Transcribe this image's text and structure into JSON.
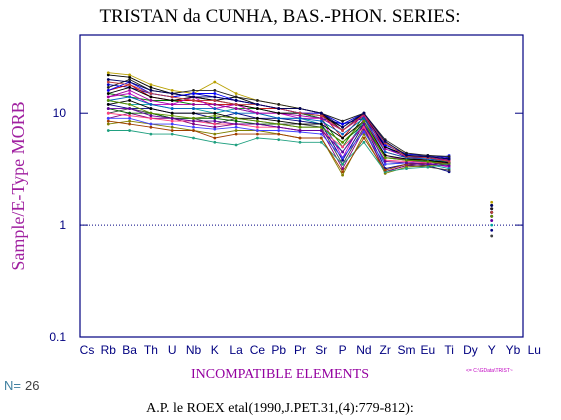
{
  "chart_data": {
    "type": "line",
    "title": "TRISTAN da CUNHA, BAS.-PHON. SERIES:",
    "x_label": "INCOMPATIBLE ELEMENTS",
    "y_label": "Sample/E-Type MORB",
    "count_label": "N=",
    "count": 26,
    "source_note": "<= C:\\GData\\TRIST~",
    "citation": "A.P. le ROEX etal(1990,J.PET.31,(4):779-812):",
    "categories": [
      "Cs",
      "Rb",
      "Ba",
      "Th",
      "U",
      "Nb",
      "K",
      "La",
      "Ce",
      "Pb",
      "Pr",
      "Sr",
      "P",
      "Nd",
      "Zr",
      "Sm",
      "Eu",
      "Ti",
      "Dy",
      "Y",
      "Yb",
      "Lu"
    ],
    "log_scale": true,
    "ylim": [
      0.1,
      50
    ],
    "yticks": [
      0.1,
      1,
      10
    ],
    "reference_line": 1,
    "series": [
      {
        "color": "#000000",
        "values": [
          null,
          22,
          21,
          17,
          15,
          14,
          13,
          14,
          12,
          11,
          11,
          10,
          7,
          10,
          5,
          4.2,
          4,
          3.8,
          null,
          1.5,
          null,
          null
        ]
      },
      {
        "color": "#b8a000",
        "values": [
          null,
          23,
          22,
          18,
          16,
          15,
          19,
          15,
          13,
          12,
          11,
          10,
          8,
          10,
          5.5,
          4.3,
          4.2,
          4,
          null,
          1.6,
          null,
          null
        ]
      },
      {
        "color": "#0000c0",
        "values": [
          null,
          18,
          17,
          15,
          14,
          15,
          14,
          13,
          12,
          11,
          10,
          9,
          8,
          9,
          5,
          4,
          4,
          3.6,
          null,
          1.4,
          null,
          null
        ]
      },
      {
        "color": "#c00000",
        "values": [
          null,
          16,
          18,
          14,
          13,
          13,
          12,
          12,
          11,
          11,
          10,
          10,
          6,
          10,
          4.5,
          4,
          3.8,
          3.5,
          null,
          1.3,
          null,
          null
        ]
      },
      {
        "color": "#008000",
        "values": [
          null,
          15,
          14,
          13,
          13,
          12,
          12,
          11,
          11,
          10,
          10,
          9,
          5,
          9.5,
          4,
          3.9,
          3.7,
          3.4,
          null,
          1.2,
          null,
          null
        ]
      },
      {
        "color": "#c000c0",
        "values": [
          null,
          14,
          15,
          12,
          12,
          14,
          11,
          12,
          10,
          10,
          9,
          9,
          4,
          9,
          4.2,
          3.8,
          3.6,
          3.3,
          null,
          1.1,
          null,
          null
        ]
      },
      {
        "color": "#00a0a0",
        "values": [
          null,
          13,
          12,
          12,
          11,
          11,
          10,
          11,
          10,
          9,
          9,
          8,
          4.5,
          8.5,
          3.5,
          3.6,
          3.5,
          3.2,
          null,
          1,
          null,
          null
        ]
      },
      {
        "color": "#000080",
        "values": [
          null,
          12,
          11,
          11,
          10,
          10,
          9,
          10,
          9,
          9,
          8.5,
          8,
          3.8,
          8,
          3.2,
          3.5,
          3.4,
          3,
          null,
          0.9,
          null,
          null
        ]
      },
      {
        "color": "#404040",
        "values": [
          null,
          10,
          11,
          10,
          9,
          9,
          8,
          9,
          8.5,
          8,
          8,
          7.5,
          3.5,
          7.5,
          3,
          3.4,
          3.3,
          3.1,
          null,
          0.8,
          null,
          null
        ]
      },
      {
        "color": "#800080",
        "values": [
          null,
          9,
          10,
          9,
          9,
          8,
          7.5,
          8,
          8,
          7.5,
          7,
          7,
          3.2,
          7.2,
          3,
          3.4,
          3.5,
          3.6,
          null,
          1.2,
          null,
          null
        ]
      },
      {
        "color": "#808000",
        "values": [
          null,
          8,
          8.5,
          8,
          7.5,
          7,
          6.5,
          7,
          7,
          6.5,
          6,
          6,
          2.8,
          6.5,
          2.9,
          3.3,
          3.4,
          3.5,
          null,
          1.3,
          null,
          null
        ]
      },
      {
        "color": "#20a080",
        "values": [
          null,
          7,
          7,
          6.5,
          6.5,
          6,
          5.5,
          5.2,
          6,
          5.8,
          5.5,
          5.5,
          3.5,
          5.5,
          3,
          3.2,
          3.3,
          3.5,
          null,
          1.4,
          null,
          null
        ]
      },
      {
        "color": "#a04000",
        "values": [
          null,
          8.5,
          8,
          7.5,
          7,
          7,
          6,
          6.5,
          6.5,
          6.5,
          6,
          6,
          3,
          6,
          3.1,
          3.5,
          3.6,
          4,
          null,
          1.5,
          null,
          null
        ]
      },
      {
        "color": "#4040ff",
        "values": [
          null,
          9,
          9,
          8,
          8,
          7.5,
          7.2,
          7.5,
          7,
          7,
          6.8,
          6.5,
          4,
          6.8,
          3.5,
          3.6,
          3.7,
          4.2,
          null,
          1.3,
          null,
          null
        ]
      },
      {
        "color": "#ff4080",
        "values": [
          null,
          10,
          9.5,
          9,
          8.5,
          8.5,
          8,
          8,
          7.5,
          7.5,
          7,
          7,
          5,
          7.5,
          3.8,
          3.7,
          3.6,
          3.8,
          null,
          1.2,
          null,
          null
        ]
      },
      {
        "color": "#006000",
        "values": [
          null,
          11,
          10,
          10,
          9,
          9,
          9,
          8.5,
          8,
          8,
          7.5,
          7.5,
          5.5,
          8,
          4,
          3.8,
          3.7,
          3.7,
          null,
          1.3,
          null,
          null
        ]
      },
      {
        "color": "#000000",
        "values": [
          null,
          12,
          13,
          11,
          10,
          10,
          10,
          9,
          9,
          8.5,
          8,
          8,
          6,
          8.5,
          4.2,
          3.9,
          3.8,
          3.6,
          null,
          1.4,
          null,
          null
        ]
      },
      {
        "color": "#0060c0",
        "values": [
          null,
          13,
          14,
          12,
          11,
          11,
          11,
          10,
          10,
          9,
          9,
          8.5,
          6.5,
          9,
          4.5,
          4,
          3.9,
          3.7,
          null,
          1.5,
          null,
          null
        ]
      },
      {
        "color": "#a000a0",
        "values": [
          null,
          14,
          16,
          13,
          12,
          12,
          12,
          11,
          10,
          10,
          9.5,
          9,
          7,
          9.5,
          4.8,
          4.1,
          4,
          3.8,
          null,
          1.4,
          null,
          null
        ]
      },
      {
        "color": "#000000",
        "values": [
          null,
          15,
          17,
          14,
          13,
          14,
          13,
          12,
          11,
          10,
          10,
          9.5,
          7.5,
          10,
          5,
          4.2,
          4.1,
          3.9,
          null,
          1.3,
          null,
          null
        ]
      },
      {
        "color": "#0000ff",
        "values": [
          null,
          16,
          19,
          15,
          14,
          15,
          15,
          13,
          12,
          11,
          10,
          10,
          8,
          10,
          5.2,
          4.3,
          4.2,
          4,
          null,
          1.2,
          null,
          null
        ]
      },
      {
        "color": "#202020",
        "values": [
          null,
          17,
          20,
          16,
          15,
          16,
          16,
          14,
          13,
          12,
          11,
          10,
          8.5,
          10,
          5.8,
          4.4,
          4.2,
          4.1,
          null,
          1.4,
          null,
          null
        ]
      },
      {
        "color": "#c04040",
        "values": [
          null,
          19,
          18,
          15,
          14,
          13,
          13,
          12,
          12,
          11,
          10,
          9.5,
          7,
          9.8,
          5.4,
          4.1,
          4,
          3.7,
          null,
          1.3,
          null,
          null
        ]
      },
      {
        "color": "#000060",
        "values": [
          null,
          20,
          19,
          16,
          15,
          14,
          14,
          13,
          12,
          11,
          11,
          10,
          7.5,
          10,
          5.6,
          4.2,
          4.1,
          3.9,
          null,
          1.5,
          null,
          null
        ]
      },
      {
        "color": "#609000",
        "values": [
          null,
          13,
          12,
          10,
          9.5,
          9,
          9.5,
          9,
          8.5,
          8,
          7.5,
          7.5,
          5.5,
          8.5,
          4,
          3.8,
          3.7,
          3.5,
          null,
          1.2,
          null,
          null
        ]
      },
      {
        "color": "#6000a0",
        "values": [
          null,
          11,
          11,
          9.5,
          9,
          8.5,
          8.5,
          8,
          8,
          7.5,
          7,
          7,
          4.5,
          8,
          3.7,
          3.6,
          3.5,
          3.4,
          null,
          1.1,
          null,
          null
        ]
      }
    ]
  }
}
